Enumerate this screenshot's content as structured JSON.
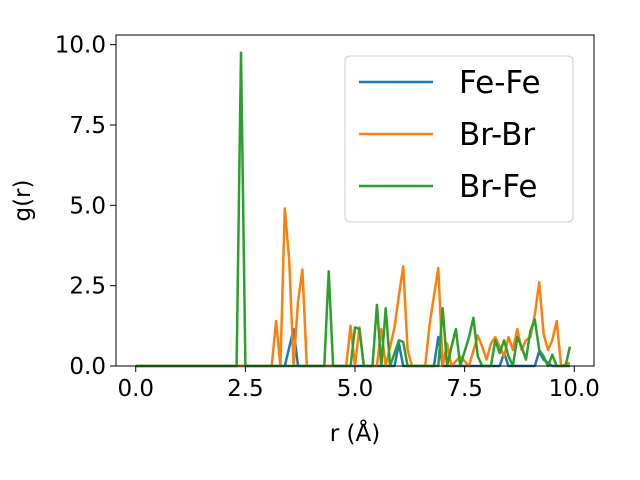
{
  "chart_data": {
    "type": "line",
    "xlabel": "r (Å)",
    "ylabel": "g(r)",
    "xlim": [
      -0.45,
      10.45
    ],
    "ylim": [
      0,
      10.3
    ],
    "xticks": [
      "0.0",
      "2.5",
      "5.0",
      "7.5",
      "10.0"
    ],
    "yticks": [
      "0.0",
      "2.5",
      "5.0",
      "7.5",
      "10.0"
    ],
    "grid": false,
    "legend_position": "top-right",
    "series": [
      {
        "name": "Fe-Fe",
        "color": "#1f77b4",
        "points": [
          [
            0,
            0
          ],
          [
            3.4,
            0
          ],
          [
            3.6,
            1.15
          ],
          [
            3.7,
            0
          ],
          [
            5.9,
            0
          ],
          [
            6.0,
            0.7
          ],
          [
            6.1,
            0
          ],
          [
            6.8,
            0
          ],
          [
            6.9,
            0.9
          ],
          [
            7.0,
            0
          ],
          [
            8.3,
            0
          ],
          [
            8.4,
            0.4
          ],
          [
            8.5,
            0
          ],
          [
            9.1,
            0
          ],
          [
            9.2,
            0.45
          ],
          [
            9.3,
            0.2
          ],
          [
            9.5,
            0
          ],
          [
            9.9,
            0
          ]
        ]
      },
      {
        "name": "Br-Br",
        "color": "#ff7f0e",
        "points": [
          [
            0,
            0
          ],
          [
            3.1,
            0
          ],
          [
            3.2,
            1.4
          ],
          [
            3.3,
            0
          ],
          [
            3.4,
            4.9
          ],
          [
            3.5,
            3.3
          ],
          [
            3.6,
            0
          ],
          [
            3.7,
            2.0
          ],
          [
            3.8,
            3.0
          ],
          [
            3.9,
            0
          ],
          [
            4.8,
            0
          ],
          [
            4.9,
            1.25
          ],
          [
            5.0,
            0
          ],
          [
            5.1,
            1.2
          ],
          [
            5.2,
            0
          ],
          [
            5.5,
            0
          ],
          [
            5.6,
            1.15
          ],
          [
            5.7,
            0
          ],
          [
            5.9,
            1.2
          ],
          [
            6.0,
            2.2
          ],
          [
            6.1,
            3.1
          ],
          [
            6.2,
            0.5
          ],
          [
            6.3,
            0
          ],
          [
            6.6,
            0
          ],
          [
            6.7,
            1.3
          ],
          [
            6.9,
            3.05
          ],
          [
            7.0,
            0
          ],
          [
            7.1,
            0.7
          ],
          [
            7.2,
            0
          ],
          [
            7.4,
            0.3
          ],
          [
            7.6,
            0
          ],
          [
            7.8,
            0.95
          ],
          [
            7.9,
            0.6
          ],
          [
            8.0,
            0.2
          ],
          [
            8.1,
            0.7
          ],
          [
            8.2,
            0.9
          ],
          [
            8.3,
            0.6
          ],
          [
            8.4,
            0.3
          ],
          [
            8.5,
            0.9
          ],
          [
            8.6,
            0.5
          ],
          [
            8.7,
            1.15
          ],
          [
            8.8,
            0.5
          ],
          [
            8.9,
            0.8
          ],
          [
            9.0,
            0.9
          ],
          [
            9.1,
            1.6
          ],
          [
            9.2,
            2.6
          ],
          [
            9.3,
            1.0
          ],
          [
            9.4,
            0.5
          ],
          [
            9.5,
            0.8
          ],
          [
            9.6,
            1.4
          ],
          [
            9.7,
            0
          ],
          [
            9.9,
            0.1
          ]
        ]
      },
      {
        "name": "Br-Fe",
        "color": "#2ca02c",
        "points": [
          [
            0,
            0
          ],
          [
            2.3,
            0
          ],
          [
            2.4,
            9.75
          ],
          [
            2.5,
            0
          ],
          [
            4.3,
            0
          ],
          [
            4.4,
            2.95
          ],
          [
            4.5,
            0
          ],
          [
            4.9,
            0
          ],
          [
            5.0,
            1.2
          ],
          [
            5.1,
            1.15
          ],
          [
            5.2,
            0
          ],
          [
            5.4,
            0
          ],
          [
            5.5,
            1.9
          ],
          [
            5.6,
            0
          ],
          [
            5.7,
            1.8
          ],
          [
            5.8,
            0
          ],
          [
            6.0,
            0.8
          ],
          [
            6.1,
            0.75
          ],
          [
            6.2,
            0
          ],
          [
            6.9,
            0
          ],
          [
            7.0,
            1.8
          ],
          [
            7.1,
            0
          ],
          [
            7.2,
            0.6
          ],
          [
            7.3,
            1.15
          ],
          [
            7.4,
            0
          ],
          [
            7.6,
            0.9
          ],
          [
            7.7,
            1.5
          ],
          [
            7.8,
            0.3
          ],
          [
            7.9,
            0
          ],
          [
            8.1,
            0
          ],
          [
            8.2,
            0.8
          ],
          [
            8.3,
            0.4
          ],
          [
            8.4,
            0.8
          ],
          [
            8.5,
            0.3
          ],
          [
            8.6,
            0
          ],
          [
            8.7,
            0.9
          ],
          [
            8.8,
            0.6
          ],
          [
            8.9,
            0.2
          ],
          [
            9.0,
            1.1
          ],
          [
            9.1,
            1.45
          ],
          [
            9.2,
            0.5
          ],
          [
            9.3,
            0.3
          ],
          [
            9.4,
            0
          ],
          [
            9.5,
            0.35
          ],
          [
            9.6,
            0
          ],
          [
            9.8,
            0
          ],
          [
            9.9,
            0.6
          ]
        ]
      }
    ]
  }
}
